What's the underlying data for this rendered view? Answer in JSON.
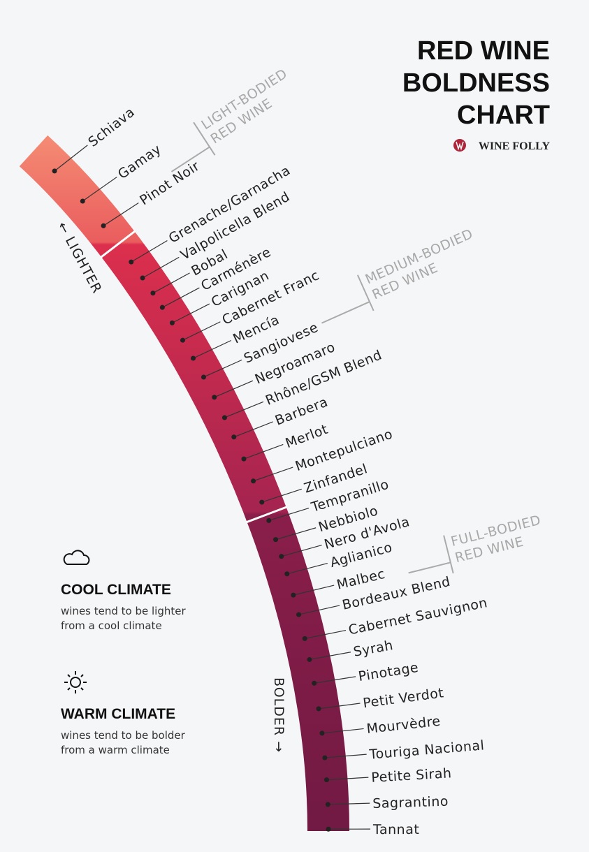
{
  "title": [
    "RED WINE",
    "BOLDNESS",
    "CHART"
  ],
  "brand": "WINE FOLLY",
  "axis": {
    "lighter": "← LIGHTER",
    "bolder": "BOLDER →"
  },
  "body_types": [
    [
      "LIGHT-BODIED",
      "RED WINE"
    ],
    [
      "MEDIUM-BODIED",
      "RED WINE"
    ],
    [
      "FULL-BODIED",
      "RED WINE"
    ]
  ],
  "wines": [
    "Schiava",
    "Gamay",
    "Pinot Noir",
    "Grenache/Garnacha",
    "Valpolicella Blend",
    "Bobal",
    "Carménère",
    "Carignan",
    "Cabernet Franc",
    "Mencía",
    "Sangiovese",
    "Negroamaro",
    "Rhône/GSM Blend",
    "Barbera",
    "Merlot",
    "Montepulciano",
    "Zinfandel",
    "Tempranillo",
    "Nebbiolo",
    "Nero d'Avola",
    "Aglianico",
    "Malbec",
    "Bordeaux Blend",
    "Cabernet Sauvignon",
    "Syrah",
    "Pinotage",
    "Petit Verdot",
    "Mourvèdre",
    "Touriga Nacional",
    "Petite Sirah",
    "Sagrantino",
    "Tannat"
  ],
  "legend": [
    {
      "title": "COOL CLIMATE",
      "text": [
        "wines tend to be lighter",
        "from a cool climate"
      ]
    },
    {
      "title": "WARM CLIMATE",
      "text": [
        "wines tend to be bolder",
        "from a warm climate"
      ]
    }
  ]
}
